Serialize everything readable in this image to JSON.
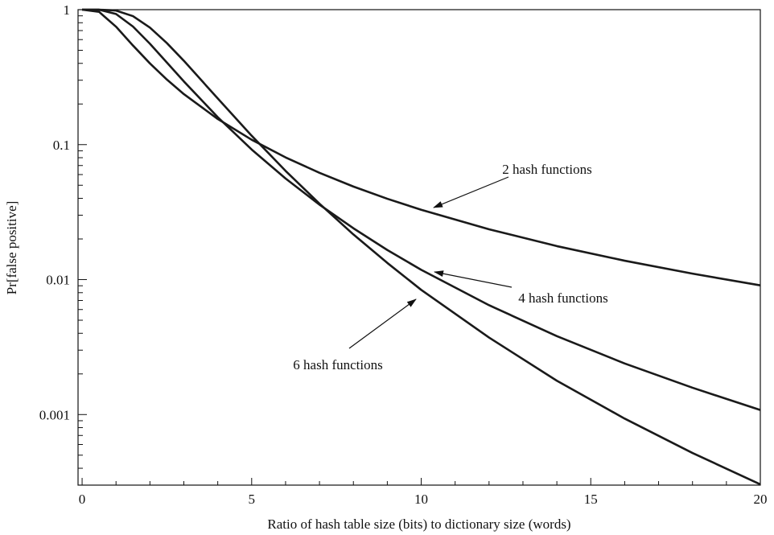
{
  "chart_data": {
    "type": "line",
    "xlabel": "Ratio of hash table size (bits) to dictionary size (words)",
    "ylabel": "Pr[false positive]",
    "log_y": true,
    "x": [
      0,
      0.5,
      1,
      1.5,
      2,
      2.5,
      3,
      4,
      5,
      6,
      7,
      8,
      9,
      10,
      12,
      14,
      16,
      18,
      20
    ],
    "series": [
      {
        "color": "#1a1a1a",
        "values": [
          1,
          0.9637,
          0.7477,
          0.5423,
          0.3996,
          0.3033,
          0.2368,
          0.1548,
          0.1087,
          0.0804,
          0.0618,
          0.0489,
          0.0397,
          0.0329,
          0.0236,
          0.0177,
          0.0138,
          0.01107,
          0.00906
        ]
      },
      {
        "color": "#1a1a1a",
        "values": [
          1,
          0.99866,
          0.9288,
          0.7497,
          0.5591,
          0.4057,
          0.2941,
          0.1597,
          0.092,
          0.0561,
          0.0359,
          0.024,
          0.01657,
          0.01181,
          0.00646,
          0.00381,
          0.00239,
          0.00158,
          0.00108
        ]
      },
      {
        "color": "#1a1a1a",
        "values": [
          1,
          0.99996,
          0.9852,
          0.8952,
          0.7358,
          0.5654,
          0.418,
          0.2198,
          0.1164,
          0.0639,
          0.0365,
          0.0216,
          0.01329,
          0.00839,
          0.00372,
          0.00178,
          0.000933,
          0.000519,
          0.000304
        ]
      }
    ],
    "annotations": [
      "2 hash functions",
      "4 hash functions",
      "6 hash functions"
    ],
    "xlim": [
      -0.12,
      20
    ],
    "ylim": [
      0.0003,
      1
    ],
    "xticks": [
      0,
      5,
      10,
      15,
      20
    ],
    "xminorticks": [
      1,
      2,
      3,
      4,
      6,
      7,
      8,
      9,
      11,
      12,
      13,
      14,
      16,
      17,
      18,
      19
    ],
    "yticks": [
      0.001,
      0.01,
      0.1,
      1
    ],
    "yminorticks": [
      0.0004,
      0.0005,
      0.0006,
      0.0007,
      0.0008,
      0.0009,
      0.002,
      0.003,
      0.004,
      0.005,
      0.006,
      0.007,
      0.008,
      0.009,
      0.02,
      0.03,
      0.04,
      0.05,
      0.06,
      0.07,
      0.08,
      0.09,
      0.2,
      0.3,
      0.4,
      0.5,
      0.6,
      0.7,
      0.8,
      0.9
    ],
    "grid": false
  }
}
